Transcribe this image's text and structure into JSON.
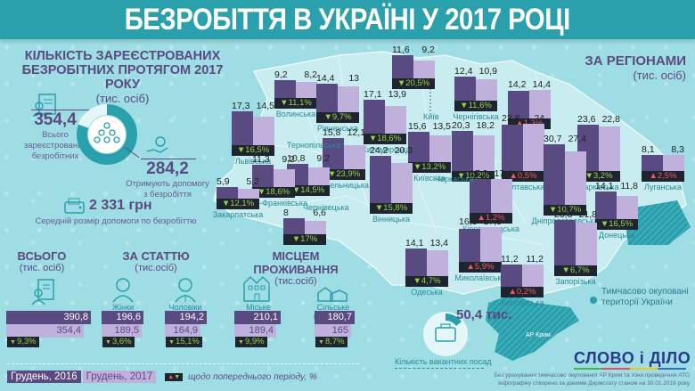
{
  "title": "БЕЗРОБІТТЯ В УКРАЇНІ У 2017 РОЦІ",
  "summary": {
    "heading_line1": "КІЛЬКІСТЬ ЗАРЕЄСТРОВАНИХ",
    "heading_line2": "БЕЗРОБІТНИХ ПРОТЯГОМ 2017 РОКУ",
    "unit": "(тис. осіб)",
    "total_registered": "354,4",
    "total_registered_label_1": "Всього",
    "total_registered_label_2": "зареєстрованих",
    "total_registered_label_3": "безробітних",
    "receiving_benefit": "284,2",
    "receiving_benefit_label_1": "Отримують допомогу",
    "receiving_benefit_label_2": "з безробіття",
    "avg_benefit": "2 331 грн",
    "avg_benefit_label": "Середній розмір допомоги по безробіттю"
  },
  "breakdown": {
    "total": {
      "title": "ВСЬОГО",
      "unit": "(тис. осіб)",
      "dec2016": "390,8",
      "dec2017": "354,4",
      "change": "9,3%",
      "direction": "down"
    },
    "gender": {
      "title": "ЗА СТАТТЮ",
      "unit": "(тис.осіб)",
      "items": [
        {
          "label": "Жінки",
          "dec2016": "196,6",
          "dec2017": "189,5",
          "change": "3,6%",
          "direction": "down"
        },
        {
          "label": "Чоловіки",
          "dec2016": "194,2",
          "dec2017": "164,9",
          "change": "15,1%",
          "direction": "down"
        }
      ]
    },
    "residence": {
      "title": "МІСЦЕМ ПРОЖИВАННЯ",
      "unit": "(тис.осіб)",
      "items": [
        {
          "label": "Міське населення",
          "dec2016": "210,1",
          "dec2017": "189,4",
          "change": "9,9%",
          "direction": "down"
        },
        {
          "label": "Сільське населення",
          "dec2016": "180,7",
          "dec2017": "165",
          "change": "8,7%",
          "direction": "down"
        }
      ]
    }
  },
  "legend": {
    "dec2016": "Грудень, 2016",
    "dec2017": "Грудень, 2017",
    "change_note": "щодо попереднього періоду, %"
  },
  "regions_heading": {
    "title": "ЗА РЕГІОНАМИ",
    "unit": "(тис. осіб)"
  },
  "regions_unlabeled_city": "Київ",
  "extra_labels": {
    "ternopil": "Тернопільська",
    "chernivtsi": "Чернівецька",
    "cherkasy": "Черкаська"
  },
  "vacancies": {
    "value": "50,4 тис.",
    "label": "Кількість вакантних посад"
  },
  "occupied": {
    "line1": "Тимчасово окуповані",
    "line2": "території України",
    "crimea": "АР Крим"
  },
  "brand": "СЛОВО і ДІЛО",
  "footnote": {
    "line1": "Без урахування тимчасово окупованої АР Крим та зони проведення АТО",
    "line2": "Інфографіку створено за даними Держстату станом на 30.01.2018 року"
  },
  "colors": {
    "dec2016": "#5a4a82",
    "dec2017": "#c0b0dc",
    "down": "#9ad04a",
    "up": "#f05a5a",
    "accent": "#2aa0ad"
  },
  "chart_data": {
    "type": "bar",
    "title": "Безробіття в Україні у 2017 році — за регіонами (тис. осіб)",
    "series_names": [
      "Грудень, 2016",
      "Грудень, 2017"
    ],
    "regions": [
      {
        "name": "Волинська",
        "v2016": 9.2,
        "v2017": 8.2,
        "change": "11,1%",
        "dir": "down"
      },
      {
        "name": "Рівненська",
        "v2016": 14.4,
        "v2017": 13,
        "change": "9,7%",
        "dir": "down"
      },
      {
        "name": "Київ",
        "v2016": 11.6,
        "v2017": 9.2,
        "change": "20,5%",
        "dir": "down"
      },
      {
        "name": "Чернігівська",
        "v2016": 12.4,
        "v2017": 10.9,
        "change": "11,6%",
        "dir": "down"
      },
      {
        "name": "Сумська",
        "v2016": 14.2,
        "v2017": 14.4,
        "change": "1,3%",
        "dir": "up"
      },
      {
        "name": "Львівська",
        "v2016": 17.3,
        "v2017": 14.5,
        "change": "16,5%",
        "dir": "down"
      },
      {
        "name": "Житомирська",
        "v2016": 17.1,
        "v2017": 13.9,
        "change": "18,6%",
        "dir": "down"
      },
      {
        "name": "Київська",
        "v2016": 15.6,
        "v2017": 13.5,
        "change": "13,2%",
        "dir": "down"
      },
      {
        "name": "Хмельницька",
        "v2016": 15.8,
        "v2017": 12.1,
        "change": "23,9%",
        "dir": "down"
      },
      {
        "name": "Тернопільська",
        "v2016": 10.8,
        "v2017": 9.2,
        "change": "14,5%",
        "dir": "down"
      },
      {
        "name": "Івано-Франківська",
        "v2016": 11.3,
        "v2017": 9.2,
        "change": "18,6%",
        "dir": "down"
      },
      {
        "name": "Закарпатська",
        "v2016": 5.9,
        "v2017": 5.2,
        "change": "12,1%",
        "dir": "down"
      },
      {
        "name": "Чернівецька",
        "v2016": 8,
        "v2017": 6.6,
        "change": "17%",
        "dir": "down"
      },
      {
        "name": "Вінницька",
        "v2016": 24.2,
        "v2017": 20.3,
        "change": "15,8%",
        "dir": "down"
      },
      {
        "name": "Черкаська",
        "v2016": 20.3,
        "v2017": 18.2,
        "change": "10,2%",
        "dir": "down"
      },
      {
        "name": "Полтавська",
        "v2016": 23.8,
        "v2017": 24,
        "change": "0,5%",
        "dir": "up"
      },
      {
        "name": "Харківська",
        "v2016": 23.6,
        "v2017": 22.8,
        "change": "3,2%",
        "dir": "down"
      },
      {
        "name": "Луганська",
        "v2016": 8.1,
        "v2017": 8.3,
        "change": "2,5%",
        "dir": "up"
      },
      {
        "name": "Кіровоградська",
        "v2016": 17.2,
        "v2017": 17.4,
        "change": "1,2%",
        "dir": "up"
      },
      {
        "name": "Дніпропетровська",
        "v2016": 30.7,
        "v2017": 27.4,
        "change": "10,7%",
        "dir": "down"
      },
      {
        "name": "Донецька",
        "v2016": 14.1,
        "v2017": 11.8,
        "change": "16,5%",
        "dir": "down"
      },
      {
        "name": "Одеська",
        "v2016": 14.1,
        "v2017": 13.4,
        "change": "4,7%",
        "dir": "down"
      },
      {
        "name": "Миколаївська",
        "v2016": 16.8,
        "v2017": 17.8,
        "change": "5,9%",
        "dir": "up"
      },
      {
        "name": "Херсонська",
        "v2016": 11.2,
        "v2017": 11.2,
        "change": "0,2%",
        "dir": "up"
      },
      {
        "name": "Запорізька",
        "v2016": 23.3,
        "v2017": 21.8,
        "change": "6,7%",
        "dir": "down"
      }
    ],
    "totals": {
      "categories": [
        "Всього",
        "Жінки",
        "Чоловіки",
        "Міське населення",
        "Сільське населення"
      ],
      "series": [
        {
          "name": "Грудень, 2016",
          "values": [
            390.8,
            196.6,
            194.2,
            210.1,
            180.7
          ]
        },
        {
          "name": "Грудень, 2017",
          "values": [
            354.4,
            189.5,
            164.9,
            189.4,
            165
          ]
        }
      ],
      "changes": [
        "-9,3%",
        "-3,6%",
        "-15,1%",
        "-9,9%",
        "-8,7%"
      ]
    },
    "donut": {
      "total": 354.4,
      "receiving_benefit": 284.2
    },
    "xlabel": "",
    "ylabel": "тис. осіб"
  }
}
